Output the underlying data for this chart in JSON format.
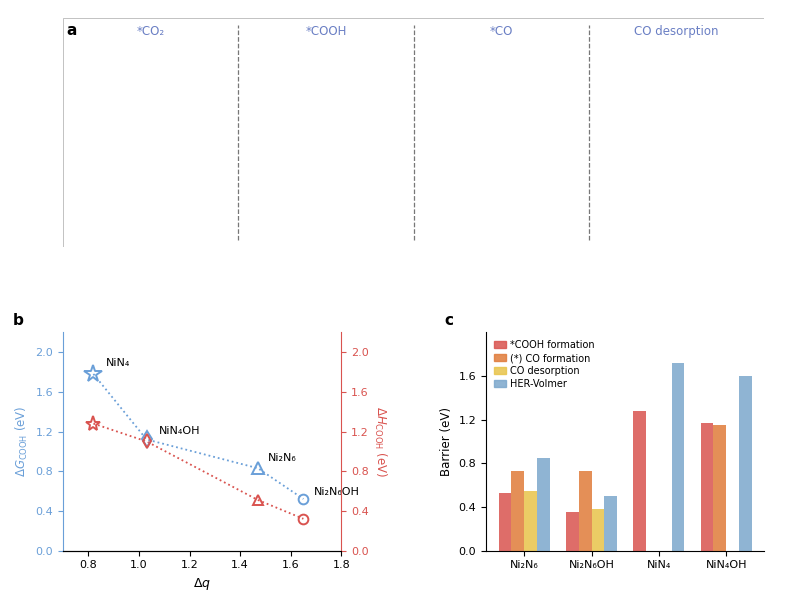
{
  "panel_a_labels": [
    "*CO₂",
    "*COOH",
    "*CO",
    "CO desorption"
  ],
  "panel_a_label_color": "#6a7fc4",
  "panel_b": {
    "blue_x": [
      0.82,
      1.03,
      1.47,
      1.65
    ],
    "blue_y": [
      1.78,
      1.12,
      0.83,
      0.52
    ],
    "red_x": [
      0.82,
      1.03,
      1.47,
      1.65
    ],
    "red_y": [
      1.28,
      1.1,
      0.51,
      0.32
    ],
    "blue_labels": [
      "NiN₄",
      "NiN₄OH",
      "Ni₂N₆",
      "Ni₂N₆OH"
    ],
    "blue_label_show": [
      true,
      true,
      true,
      true
    ],
    "xlabel": "Δq",
    "xlim": [
      0.7,
      1.8
    ],
    "ylim": [
      0,
      2.2
    ],
    "yticks": [
      0.0,
      0.4,
      0.8,
      1.2,
      1.6,
      2.0
    ],
    "xticks": [
      0.8,
      1.0,
      1.2,
      1.4,
      1.6,
      1.8
    ],
    "blue_color": "#6a9fd8",
    "red_color": "#d9534f"
  },
  "panel_c": {
    "categories": [
      "Ni₂N₆",
      "Ni₂N₆OH",
      "NiN₄",
      "NiN₄OH"
    ],
    "COOH_formation": [
      0.53,
      0.35,
      1.28,
      1.17
    ],
    "CO_formation": [
      0.73,
      0.73,
      0.0,
      1.15
    ],
    "CO_desorption": [
      0.55,
      0.38,
      0.0,
      0.0
    ],
    "HER_Volmer": [
      0.85,
      0.5,
      1.72,
      1.6
    ],
    "colors": [
      "#d9534f",
      "#e07b3a",
      "#e8c44a",
      "#7ba7cc"
    ],
    "ylabel": "Barrier (eV)",
    "ylim": [
      0,
      2.0
    ],
    "yticks": [
      0.0,
      0.4,
      0.8,
      1.2,
      1.6
    ],
    "legend_labels": [
      "*COOH formation",
      "(*) CO formation",
      "CO desorption",
      "HER-Volmer"
    ]
  },
  "fig_width": 7.88,
  "fig_height": 6.05,
  "dpi": 100
}
